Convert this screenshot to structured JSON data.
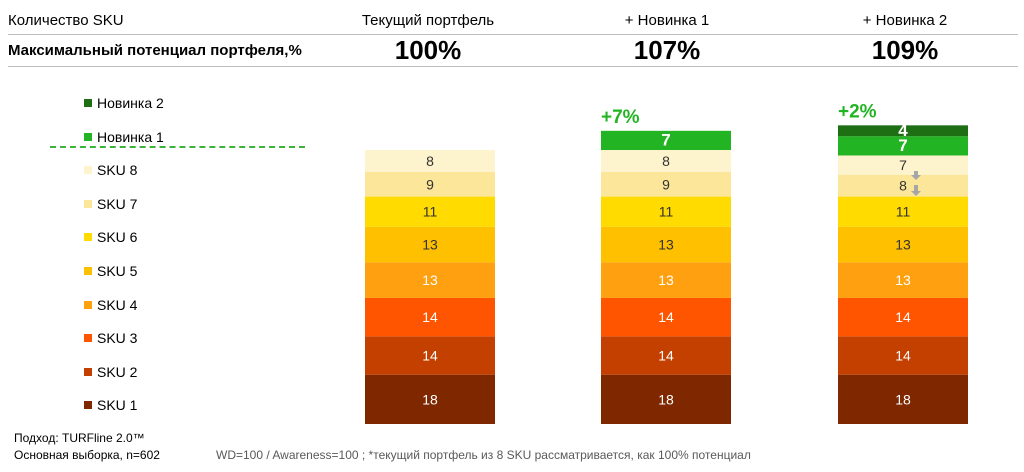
{
  "header": {
    "sku_count_label": "Количество SKU",
    "potential_label": "Максимальный потенциал портфеля,%"
  },
  "columns": [
    {
      "title": "Текущий портфель",
      "potential": "100%"
    },
    {
      "title": "+ Новинка 1",
      "potential": "107%"
    },
    {
      "title": "+ Новинка 2",
      "potential": "109%"
    }
  ],
  "legend": [
    {
      "label": "Новинка 2",
      "color": "#1e6e14"
    },
    {
      "label": "Новинка 1",
      "color": "#23b423"
    },
    {
      "label": "SKU 8",
      "color": "#fdf3cc"
    },
    {
      "label": "SKU 7",
      "color": "#fce69a"
    },
    {
      "label": "SKU 6",
      "color": "#ffdb00"
    },
    {
      "label": "SKU 5",
      "color": "#ffc000"
    },
    {
      "label": "SKU 4",
      "color": "#ffa010"
    },
    {
      "label": "SKU 3",
      "color": "#ff5500"
    },
    {
      "label": "SKU 2",
      "color": "#c44000"
    },
    {
      "label": "SKU 1",
      "color": "#7f2800"
    }
  ],
  "chart_data": {
    "type": "bar",
    "stacked": true,
    "categories": [
      "Текущий портфель",
      "+ Новинка 1",
      "+ Новинка 2"
    ],
    "series": [
      {
        "name": "SKU 1",
        "color": "#7f2800",
        "label_color": "#ffffff",
        "values": [
          18,
          18,
          18
        ]
      },
      {
        "name": "SKU 2",
        "color": "#c44000",
        "label_color": "#ffffff",
        "values": [
          14,
          14,
          14
        ]
      },
      {
        "name": "SKU 3",
        "color": "#ff5500",
        "label_color": "#ffffff",
        "values": [
          14,
          14,
          14
        ]
      },
      {
        "name": "SKU 4",
        "color": "#ffa010",
        "label_color": "#ffffff",
        "values": [
          13,
          13,
          13
        ]
      },
      {
        "name": "SKU 5",
        "color": "#ffc000",
        "label_color": "#333333",
        "values": [
          13,
          13,
          13
        ]
      },
      {
        "name": "SKU 6",
        "color": "#ffdb00",
        "label_color": "#333333",
        "values": [
          11,
          11,
          11
        ]
      },
      {
        "name": "SKU 7",
        "color": "#fce69a",
        "label_color": "#333333",
        "values": [
          9,
          9,
          8
        ]
      },
      {
        "name": "SKU 8",
        "color": "#fdf3cc",
        "label_color": "#333333",
        "values": [
          8,
          8,
          7
        ]
      },
      {
        "name": "Новинка 1",
        "color": "#23b423",
        "label_color": "#ffffff",
        "values": [
          null,
          7,
          7
        ]
      },
      {
        "name": "Новинка 2",
        "color": "#1e6e14",
        "label_color": "#ffffff",
        "values": [
          null,
          null,
          4
        ]
      }
    ],
    "increments": [
      null,
      "+7%",
      "+2%"
    ],
    "increment_color": "#23b423",
    "arrow_color": "#a6a6a6"
  },
  "footer": {
    "method": "Подход: TURFline 2.0™",
    "sample": "Основная выборка, n=602",
    "note": "WD=100  /  Awareness=100 ;  *текущий портфель из 8 SKU рассматривается, как 100% потенциал"
  }
}
